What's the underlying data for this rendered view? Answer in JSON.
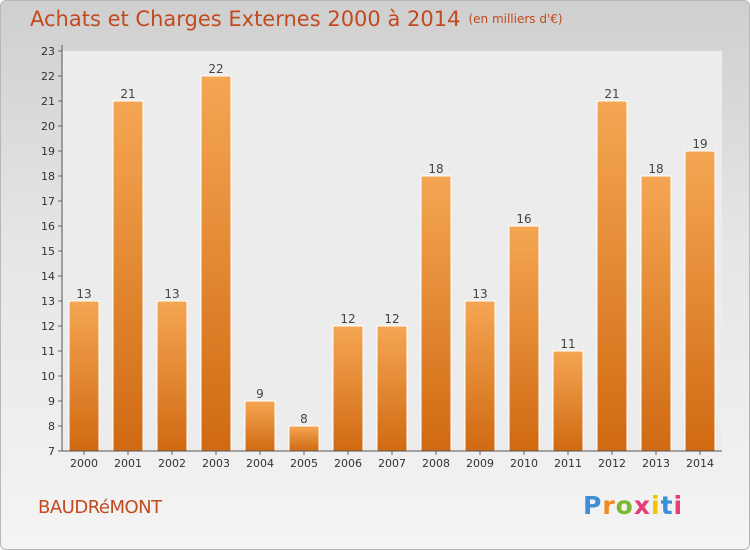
{
  "header": {
    "title": "Achats et Charges Externes 2000 à 2014",
    "subtitle": "(en milliers d'€)"
  },
  "footer": {
    "commune": "BAUDRéMONT",
    "logo_letters": [
      "P",
      "r",
      "o",
      "x",
      "i",
      "t",
      "i"
    ],
    "logo_colors": [
      "#3a8fd6",
      "#f08a1c",
      "#7cb82f",
      "#e63c7a",
      "#f3c300",
      "#3a8fd6",
      "#e63c7a"
    ]
  },
  "chart_data": {
    "type": "bar",
    "categories": [
      "2000",
      "2001",
      "2002",
      "2003",
      "2004",
      "2005",
      "2006",
      "2007",
      "2008",
      "2009",
      "2010",
      "2011",
      "2012",
      "2013",
      "2014"
    ],
    "values": [
      13,
      21,
      13,
      22,
      9,
      8,
      12,
      12,
      18,
      13,
      16,
      11,
      21,
      18,
      19
    ],
    "ylim": [
      7,
      23
    ],
    "yticks": [
      7,
      8,
      9,
      10,
      11,
      12,
      13,
      14,
      15,
      16,
      17,
      18,
      19,
      20,
      21,
      22,
      23
    ],
    "grid": false,
    "bar_color": "#f09a3e",
    "bar_color_dark": "#d26e14"
  }
}
